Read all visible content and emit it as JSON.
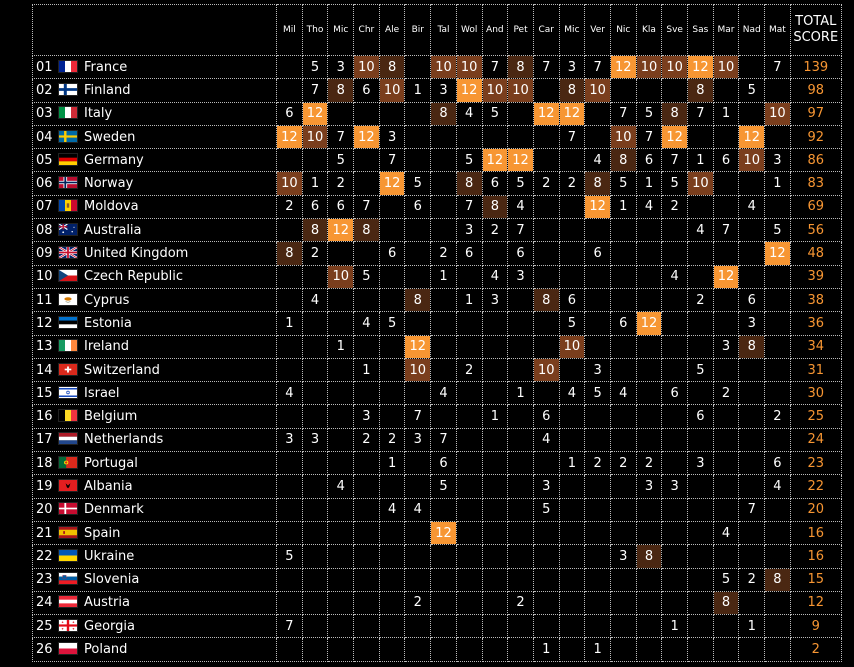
{
  "header": {
    "juries": [
      "Mil",
      "Tho",
      "Mic",
      "Chr",
      "Ale",
      "Bir",
      "Tal",
      "Wol",
      "And",
      "Pet",
      "Car",
      "Mic",
      "Ver",
      "Nic",
      "Kla",
      "Sve",
      "Sas",
      "Mar",
      "Nad",
      "Mat"
    ],
    "total_label": "TOTAL SCORE"
  },
  "colors": {
    "twelve": "#f79633",
    "ten": "#7a3e1d",
    "eight": "#4a2712",
    "total_text": "#f79633"
  },
  "rows": [
    {
      "rank": "01",
      "country": "France",
      "flag": "france-flag-icon",
      "scores": [
        "",
        "5",
        "3",
        "10",
        "8",
        "",
        "10",
        "10",
        "7",
        "8",
        "7",
        "3",
        "7",
        "12",
        "10",
        "10",
        "12",
        "10",
        "",
        "7"
      ],
      "total": "139"
    },
    {
      "rank": "02",
      "country": "Finland",
      "flag": "finland-flag-icon",
      "scores": [
        "",
        "7",
        "8",
        "6",
        "10",
        "1",
        "3",
        "12",
        "10",
        "10",
        "",
        "8",
        "10",
        "",
        "",
        "",
        "8",
        "",
        "5",
        ""
      ],
      "total": "98"
    },
    {
      "rank": "03",
      "country": "Italy",
      "flag": "italy-flag-icon",
      "scores": [
        "6",
        "12",
        "",
        "",
        "",
        "",
        "8",
        "4",
        "5",
        "",
        "12",
        "12",
        "",
        "7",
        "5",
        "8",
        "7",
        "1",
        "",
        "10"
      ],
      "total": "97"
    },
    {
      "rank": "04",
      "country": "Sweden",
      "flag": "sweden-flag-icon",
      "scores": [
        "12",
        "10",
        "7",
        "12",
        "3",
        "",
        "",
        "",
        "",
        "",
        "",
        "7",
        "",
        "10",
        "7",
        "12",
        "",
        "",
        "12",
        ""
      ],
      "total": "92"
    },
    {
      "rank": "05",
      "country": "Germany",
      "flag": "germany-flag-icon",
      "scores": [
        "",
        "",
        "5",
        "",
        "7",
        "",
        "",
        "5",
        "12",
        "12",
        "",
        "",
        "4",
        "8",
        "6",
        "7",
        "1",
        "6",
        "10",
        "3"
      ],
      "total": "86"
    },
    {
      "rank": "06",
      "country": "Norway",
      "flag": "norway-flag-icon",
      "scores": [
        "10",
        "1",
        "2",
        "",
        "12",
        "5",
        "",
        "8",
        "6",
        "5",
        "2",
        "2",
        "8",
        "5",
        "1",
        "5",
        "10",
        "",
        "",
        "1"
      ],
      "total": "83"
    },
    {
      "rank": "07",
      "country": "Moldova",
      "flag": "moldova-flag-icon",
      "scores": [
        "2",
        "6",
        "6",
        "7",
        "",
        "6",
        "",
        "7",
        "8",
        "4",
        "",
        "",
        "12",
        "1",
        "4",
        "2",
        "",
        "",
        "4",
        ""
      ],
      "total": "69"
    },
    {
      "rank": "08",
      "country": "Australia",
      "flag": "australia-flag-icon",
      "scores": [
        "",
        "8",
        "12",
        "8",
        "",
        "",
        "",
        "3",
        "2",
        "7",
        "",
        "",
        "",
        "",
        "",
        "",
        "4",
        "7",
        "",
        "5"
      ],
      "total": "56"
    },
    {
      "rank": "09",
      "country": "United Kingdom",
      "flag": "uk-flag-icon",
      "scores": [
        "8",
        "2",
        "",
        "",
        "6",
        "",
        "2",
        "6",
        "",
        "6",
        "",
        "",
        "6",
        "",
        "",
        "",
        "",
        "",
        "",
        "12"
      ],
      "total": "48"
    },
    {
      "rank": "10",
      "country": "Czech Republic",
      "flag": "czech-flag-icon",
      "scores": [
        "",
        "",
        "10",
        "5",
        "",
        "",
        "1",
        "",
        "4",
        "3",
        "",
        "",
        "",
        "",
        "",
        "4",
        "",
        "12",
        "",
        ""
      ],
      "total": "39"
    },
    {
      "rank": "11",
      "country": "Cyprus",
      "flag": "cyprus-flag-icon",
      "scores": [
        "",
        "4",
        "",
        "",
        "",
        "8",
        "",
        "1",
        "3",
        "",
        "8",
        "6",
        "",
        "",
        "",
        "",
        "2",
        "",
        "6",
        ""
      ],
      "total": "38"
    },
    {
      "rank": "12",
      "country": "Estonia",
      "flag": "estonia-flag-icon",
      "scores": [
        "1",
        "",
        "",
        "4",
        "5",
        "",
        "",
        "",
        "",
        "",
        "",
        "5",
        "",
        "6",
        "12",
        "",
        "",
        "",
        "3",
        ""
      ],
      "total": "36"
    },
    {
      "rank": "13",
      "country": "Ireland",
      "flag": "ireland-flag-icon",
      "scores": [
        "",
        "",
        "1",
        "",
        "",
        "12",
        "",
        "",
        "",
        "",
        "",
        "10",
        "",
        "",
        "",
        "",
        "",
        "3",
        "8",
        ""
      ],
      "total": "34"
    },
    {
      "rank": "14",
      "country": "Switzerland",
      "flag": "switzerland-flag-icon",
      "scores": [
        "",
        "",
        "",
        "1",
        "",
        "10",
        "",
        "2",
        "",
        "",
        "10",
        "",
        "3",
        "",
        "",
        "",
        "5",
        "",
        "",
        ""
      ],
      "total": "31"
    },
    {
      "rank": "15",
      "country": "Israel",
      "flag": "israel-flag-icon",
      "scores": [
        "4",
        "",
        "",
        "",
        "",
        "",
        "4",
        "",
        "",
        "1",
        "",
        "4",
        "5",
        "4",
        "",
        "6",
        "",
        "2",
        "",
        ""
      ],
      "total": "30"
    },
    {
      "rank": "16",
      "country": "Belgium",
      "flag": "belgium-flag-icon",
      "scores": [
        "",
        "",
        "",
        "3",
        "",
        "7",
        "",
        "",
        "1",
        "",
        "6",
        "",
        "",
        "",
        "",
        "",
        "6",
        "",
        "",
        "2"
      ],
      "total": "25"
    },
    {
      "rank": "17",
      "country": "Netherlands",
      "flag": "netherlands-flag-icon",
      "scores": [
        "3",
        "3",
        "",
        "2",
        "2",
        "3",
        "7",
        "",
        "",
        "",
        "4",
        "",
        "",
        "",
        "",
        "",
        "",
        "",
        "",
        ""
      ],
      "total": "24"
    },
    {
      "rank": "18",
      "country": "Portugal",
      "flag": "portugal-flag-icon",
      "scores": [
        "",
        "",
        "",
        "",
        "1",
        "",
        "6",
        "",
        "",
        "",
        "",
        "1",
        "2",
        "2",
        "2",
        "",
        "3",
        "",
        "",
        "6"
      ],
      "total": "23"
    },
    {
      "rank": "19",
      "country": "Albania",
      "flag": "albania-flag-icon",
      "scores": [
        "",
        "",
        "4",
        "",
        "",
        "",
        "5",
        "",
        "",
        "",
        "3",
        "",
        "",
        "",
        "3",
        "3",
        "",
        "",
        "",
        "4"
      ],
      "total": "22"
    },
    {
      "rank": "20",
      "country": "Denmark",
      "flag": "denmark-flag-icon",
      "scores": [
        "",
        "",
        "",
        "",
        "4",
        "4",
        "",
        "",
        "",
        "",
        "5",
        "",
        "",
        "",
        "",
        "",
        "",
        "",
        "7",
        ""
      ],
      "total": "20"
    },
    {
      "rank": "21",
      "country": "Spain",
      "flag": "spain-flag-icon",
      "scores": [
        "",
        "",
        "",
        "",
        "",
        "",
        "12",
        "",
        "",
        "",
        "",
        "",
        "",
        "",
        "",
        "",
        "",
        "4",
        "",
        ""
      ],
      "total": "16"
    },
    {
      "rank": "22",
      "country": "Ukraine",
      "flag": "ukraine-flag-icon",
      "scores": [
        "5",
        "",
        "",
        "",
        "",
        "",
        "",
        "",
        "",
        "",
        "",
        "",
        "",
        "3",
        "8",
        "",
        "",
        "",
        "",
        ""
      ],
      "total": "16"
    },
    {
      "rank": "23",
      "country": "Slovenia",
      "flag": "slovenia-flag-icon",
      "scores": [
        "",
        "",
        "",
        "",
        "",
        "",
        "",
        "",
        "",
        "",
        "",
        "",
        "",
        "",
        "",
        "",
        "",
        "5",
        "2",
        "8"
      ],
      "total": "15"
    },
    {
      "rank": "24",
      "country": "Austria",
      "flag": "austria-flag-icon",
      "scores": [
        "",
        "",
        "",
        "",
        "",
        "2",
        "",
        "",
        "",
        "2",
        "",
        "",
        "",
        "",
        "",
        "",
        "",
        "8",
        "",
        ""
      ],
      "total": "12"
    },
    {
      "rank": "25",
      "country": "Georgia",
      "flag": "georgia-flag-icon",
      "scores": [
        "7",
        "",
        "",
        "",
        "",
        "",
        "",
        "",
        "",
        "",
        "",
        "",
        "",
        "",
        "",
        "1",
        "",
        "",
        "1",
        ""
      ],
      "total": "9"
    },
    {
      "rank": "26",
      "country": "Poland",
      "flag": "poland-flag-icon",
      "scores": [
        "",
        "",
        "",
        "",
        "",
        "",
        "",
        "",
        "",
        "",
        "1",
        "",
        "1",
        "",
        "",
        "",
        "",
        "",
        "",
        ""
      ],
      "total": "2"
    }
  ]
}
